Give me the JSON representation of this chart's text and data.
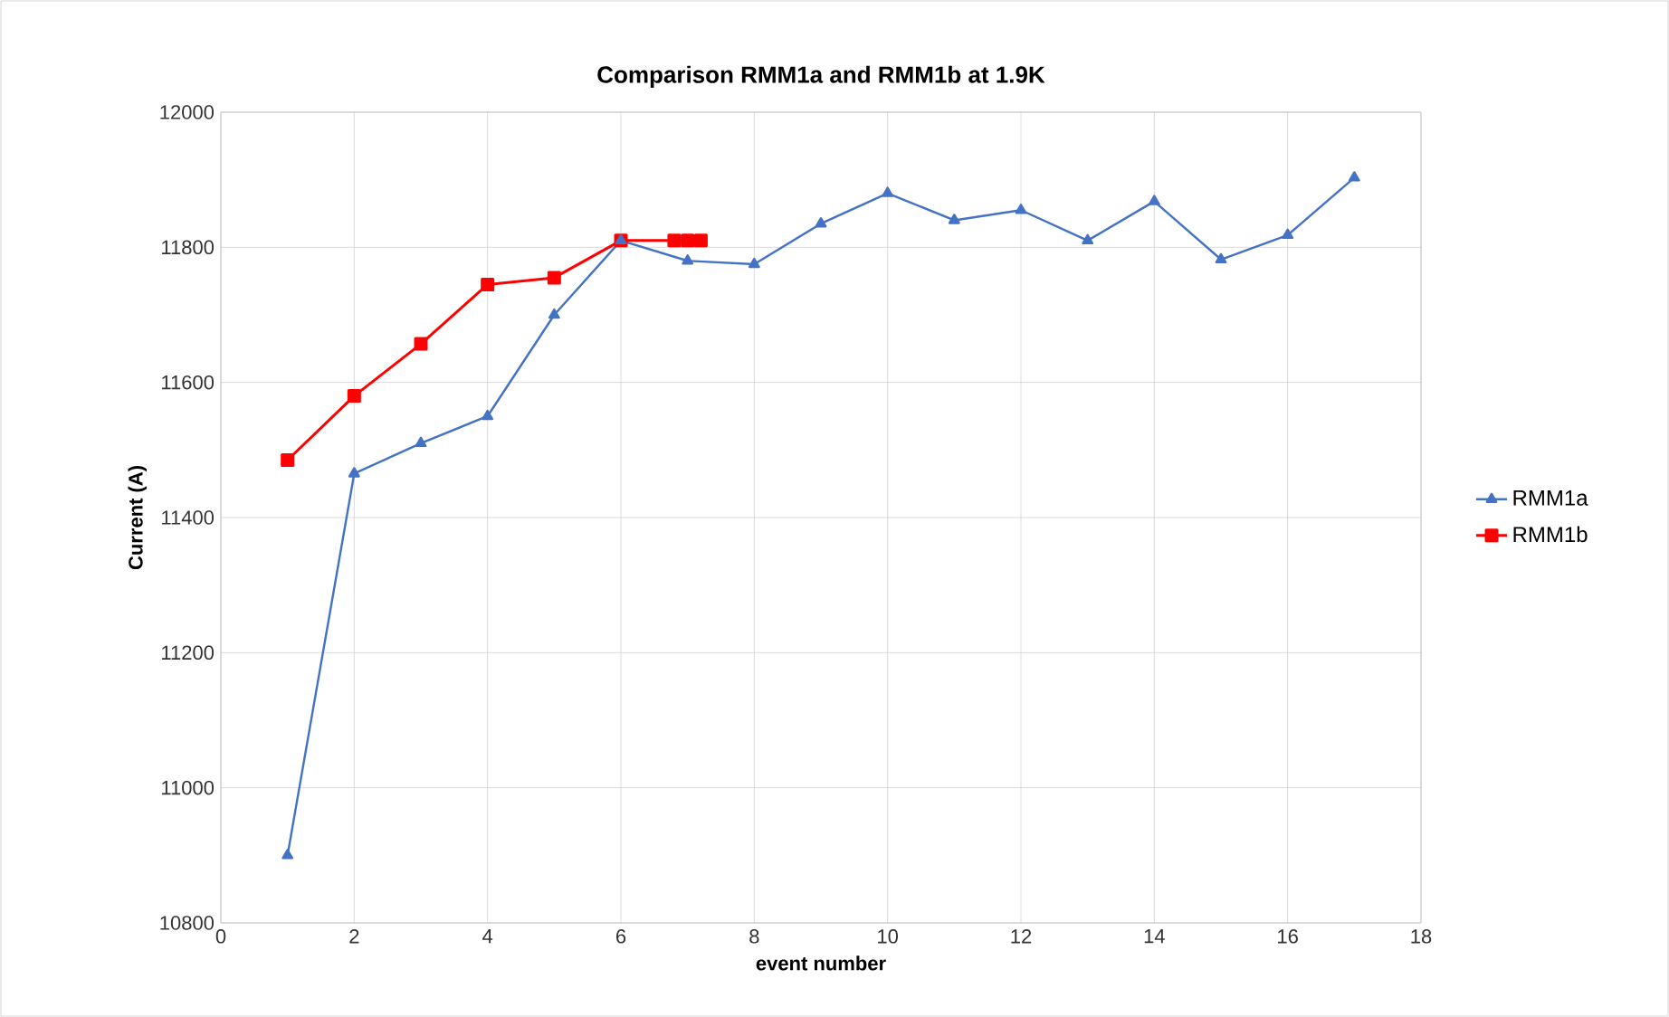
{
  "chart_data": {
    "type": "line",
    "title": "Comparison RMM1a and RMM1b at 1.9K",
    "xlabel": "event number",
    "ylabel": "Current (A)",
    "xlim": [
      0,
      18
    ],
    "xticks": [
      0,
      2,
      4,
      6,
      8,
      10,
      12,
      14,
      16,
      18
    ],
    "ylim": [
      10800,
      12000
    ],
    "yticks": [
      10800,
      11000,
      11200,
      11400,
      11600,
      11800,
      12000
    ],
    "grid": true,
    "legend": "right",
    "series": [
      {
        "name": "RMM1a",
        "color": "#4472c4",
        "marker": "triangle",
        "x": [
          1,
          2,
          3,
          4,
          5,
          6,
          7,
          8,
          9,
          10,
          11,
          12,
          13,
          14,
          15,
          16,
          17
        ],
        "values": [
          10900,
          11465,
          11510,
          11550,
          11700,
          11810,
          11780,
          11775,
          11835,
          11880,
          11840,
          11855,
          11810,
          11868,
          11782,
          11818,
          11903
        ]
      },
      {
        "name": "RMM1b",
        "color": "#ff0000",
        "marker": "square",
        "x": [
          1,
          2,
          3,
          4,
          5,
          6,
          6.8,
          7,
          7.2
        ],
        "values": [
          11485,
          11580,
          11657,
          11745,
          11755,
          11810,
          11810,
          11810,
          11810
        ]
      }
    ]
  }
}
